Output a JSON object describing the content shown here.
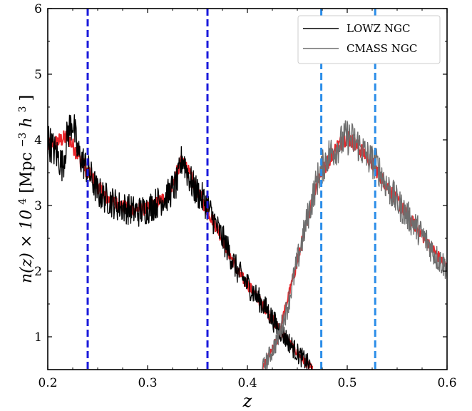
{
  "chart_data": {
    "type": "line",
    "title": "",
    "xlabel": "z",
    "ylabel": "n(z) × 10",
    "ylabel_sup1": "4",
    "ylabel_unit_open": " [Mpc",
    "ylabel_sup2": "−3",
    "ylabel_h": " h",
    "ylabel_sup3": "3",
    "ylabel_unit_close": "]",
    "xlim": [
      0.2,
      0.6
    ],
    "ylim": [
      0.5,
      6.0
    ],
    "xticks": [
      "0.2",
      "0.3",
      "0.4",
      "0.5",
      "0.6"
    ],
    "yticks": [
      "1",
      "2",
      "3",
      "4",
      "5",
      "6"
    ],
    "grid": false,
    "legend_position": "top-right",
    "legend": [
      "LOWZ NGC",
      "CMASS NGC"
    ],
    "series": [
      {
        "name": "LOWZ NGC",
        "color": "#000000",
        "x": [
          0.2,
          0.21,
          0.215,
          0.22,
          0.225,
          0.23,
          0.24,
          0.25,
          0.26,
          0.27,
          0.28,
          0.29,
          0.3,
          0.31,
          0.32,
          0.33,
          0.335,
          0.34,
          0.345,
          0.35,
          0.36,
          0.37,
          0.38,
          0.39,
          0.4,
          0.41,
          0.42,
          0.43,
          0.44,
          0.45,
          0.46,
          0.465
        ],
        "y": [
          4.0,
          3.75,
          3.6,
          4.1,
          4.3,
          3.8,
          3.55,
          3.2,
          3.1,
          3.0,
          2.95,
          2.9,
          2.95,
          3.05,
          3.15,
          3.35,
          3.75,
          3.5,
          3.3,
          3.2,
          3.0,
          2.65,
          2.35,
          2.0,
          1.8,
          1.6,
          1.4,
          1.15,
          0.95,
          0.75,
          0.6,
          0.5
        ]
      },
      {
        "name": "CMASS NGC",
        "color": "#6e6e6e",
        "x": [
          0.415,
          0.42,
          0.43,
          0.44,
          0.45,
          0.46,
          0.47,
          0.48,
          0.49,
          0.5,
          0.51,
          0.52,
          0.53,
          0.54,
          0.55,
          0.56,
          0.57,
          0.58,
          0.59,
          0.6
        ],
        "y": [
          0.5,
          0.65,
          0.95,
          1.45,
          2.15,
          2.8,
          3.4,
          3.75,
          3.9,
          4.05,
          3.95,
          3.75,
          3.6,
          3.3,
          3.05,
          2.85,
          2.65,
          2.45,
          2.2,
          2.05
        ]
      },
      {
        "name": "",
        "color": "#e8262b",
        "x": [
          0.2,
          0.22,
          0.24,
          0.26,
          0.28,
          0.3,
          0.32,
          0.335,
          0.35,
          0.37,
          0.39,
          0.41,
          0.43,
          0.45,
          0.465
        ],
        "y": [
          3.9,
          4.05,
          3.5,
          3.1,
          2.95,
          2.95,
          3.15,
          3.7,
          3.2,
          2.65,
          2.0,
          1.6,
          1.15,
          0.75,
          0.5
        ]
      },
      {
        "name": "",
        "color": "#e8262b",
        "x": [
          0.415,
          0.43,
          0.45,
          0.47,
          0.49,
          0.5,
          0.52,
          0.54,
          0.56,
          0.58,
          0.6
        ],
        "y": [
          0.5,
          0.95,
          2.15,
          3.4,
          3.9,
          4.05,
          3.75,
          3.3,
          2.85,
          2.45,
          2.05
        ]
      }
    ],
    "vlines": [
      {
        "x": 0.24,
        "color": "#1a1adb"
      },
      {
        "x": 0.36,
        "color": "#1a1adb"
      },
      {
        "x": 0.474,
        "color": "#2b8de8"
      },
      {
        "x": 0.528,
        "color": "#2b8de8"
      }
    ]
  }
}
